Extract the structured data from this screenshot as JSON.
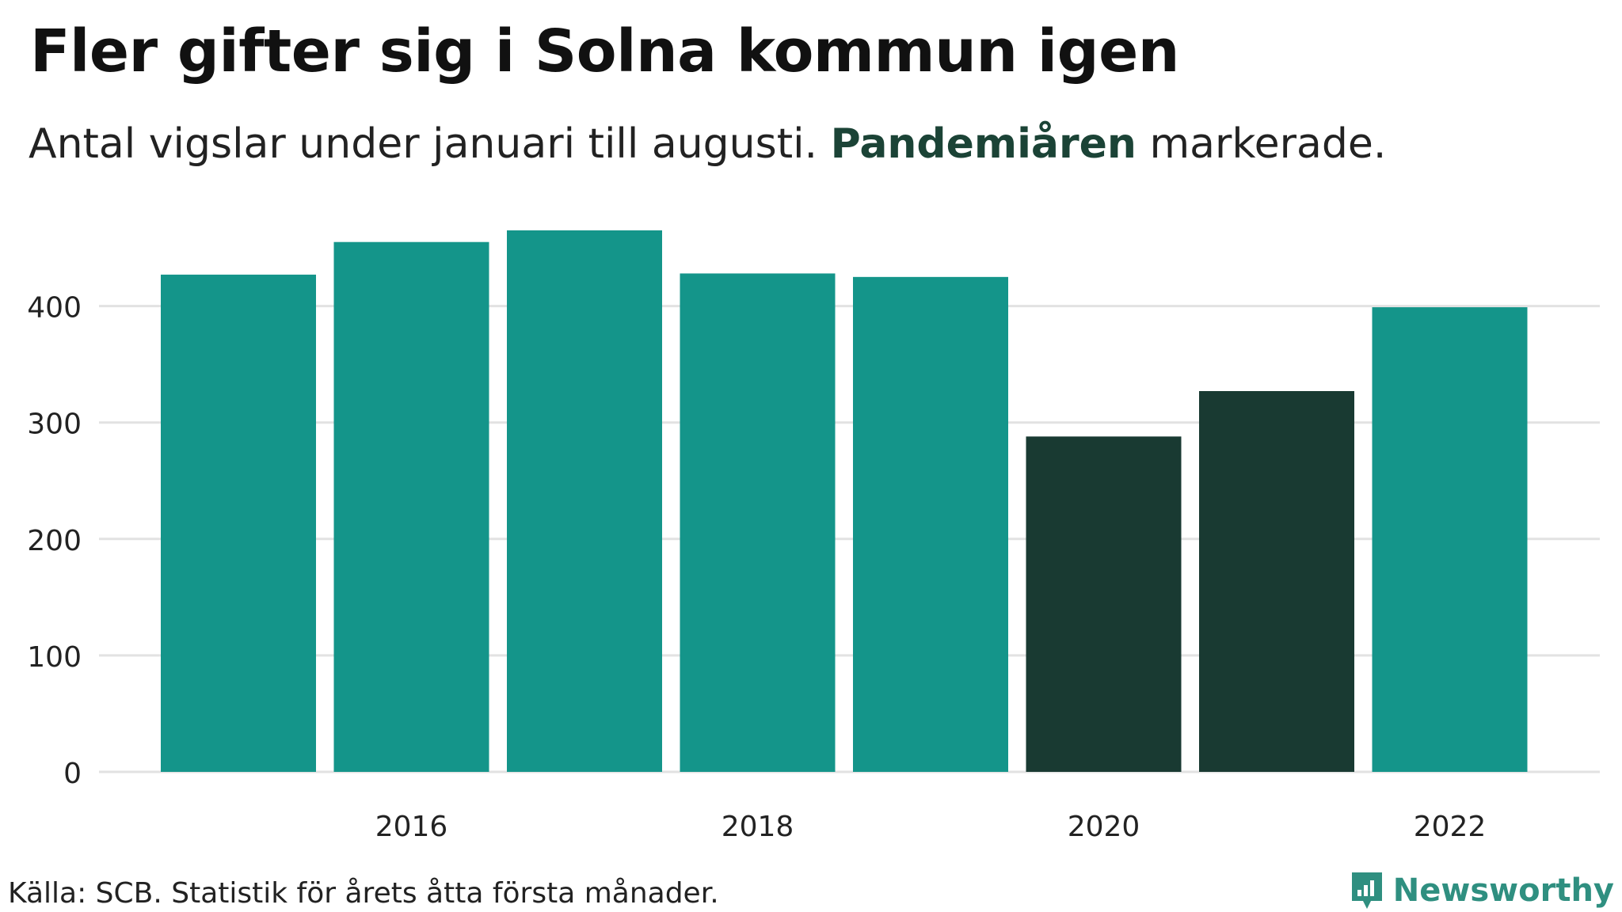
{
  "header": {
    "title": "Fler gifter sig i Solna kommun igen",
    "subtitle_before": "Antal vigslar under januari till augusti.",
    "subtitle_highlight": "Pandemiåren",
    "subtitle_after": "markerade."
  },
  "footer": {
    "source": "Källa: SCB. Statistik för årets åtta första månader.",
    "brand": "Newsworthy"
  },
  "colors": {
    "normal": "#14958a",
    "pandemic": "#193a32",
    "grid": "#e2e2e2",
    "highlight_text": "#1b4336",
    "brand": "#2f8f80"
  },
  "chart_data": {
    "type": "bar",
    "title": "Fler gifter sig i Solna kommun igen",
    "subtitle": "Antal vigslar under januari till augusti. Pandemiåren markerade.",
    "xlabel": "",
    "ylabel": "",
    "categories": [
      "2015",
      "2016",
      "2017",
      "2018",
      "2019",
      "2020",
      "2021",
      "2022"
    ],
    "values": [
      427,
      455,
      465,
      428,
      425,
      288,
      327,
      399
    ],
    "highlighted": [
      false,
      false,
      false,
      false,
      false,
      true,
      true,
      false
    ],
    "x_tick_labels": [
      "2016",
      "2018",
      "2020",
      "2022"
    ],
    "y_ticks": [
      0,
      100,
      200,
      300,
      400
    ],
    "ylim": [
      0,
      465
    ],
    "grid": true,
    "legend": "none"
  }
}
